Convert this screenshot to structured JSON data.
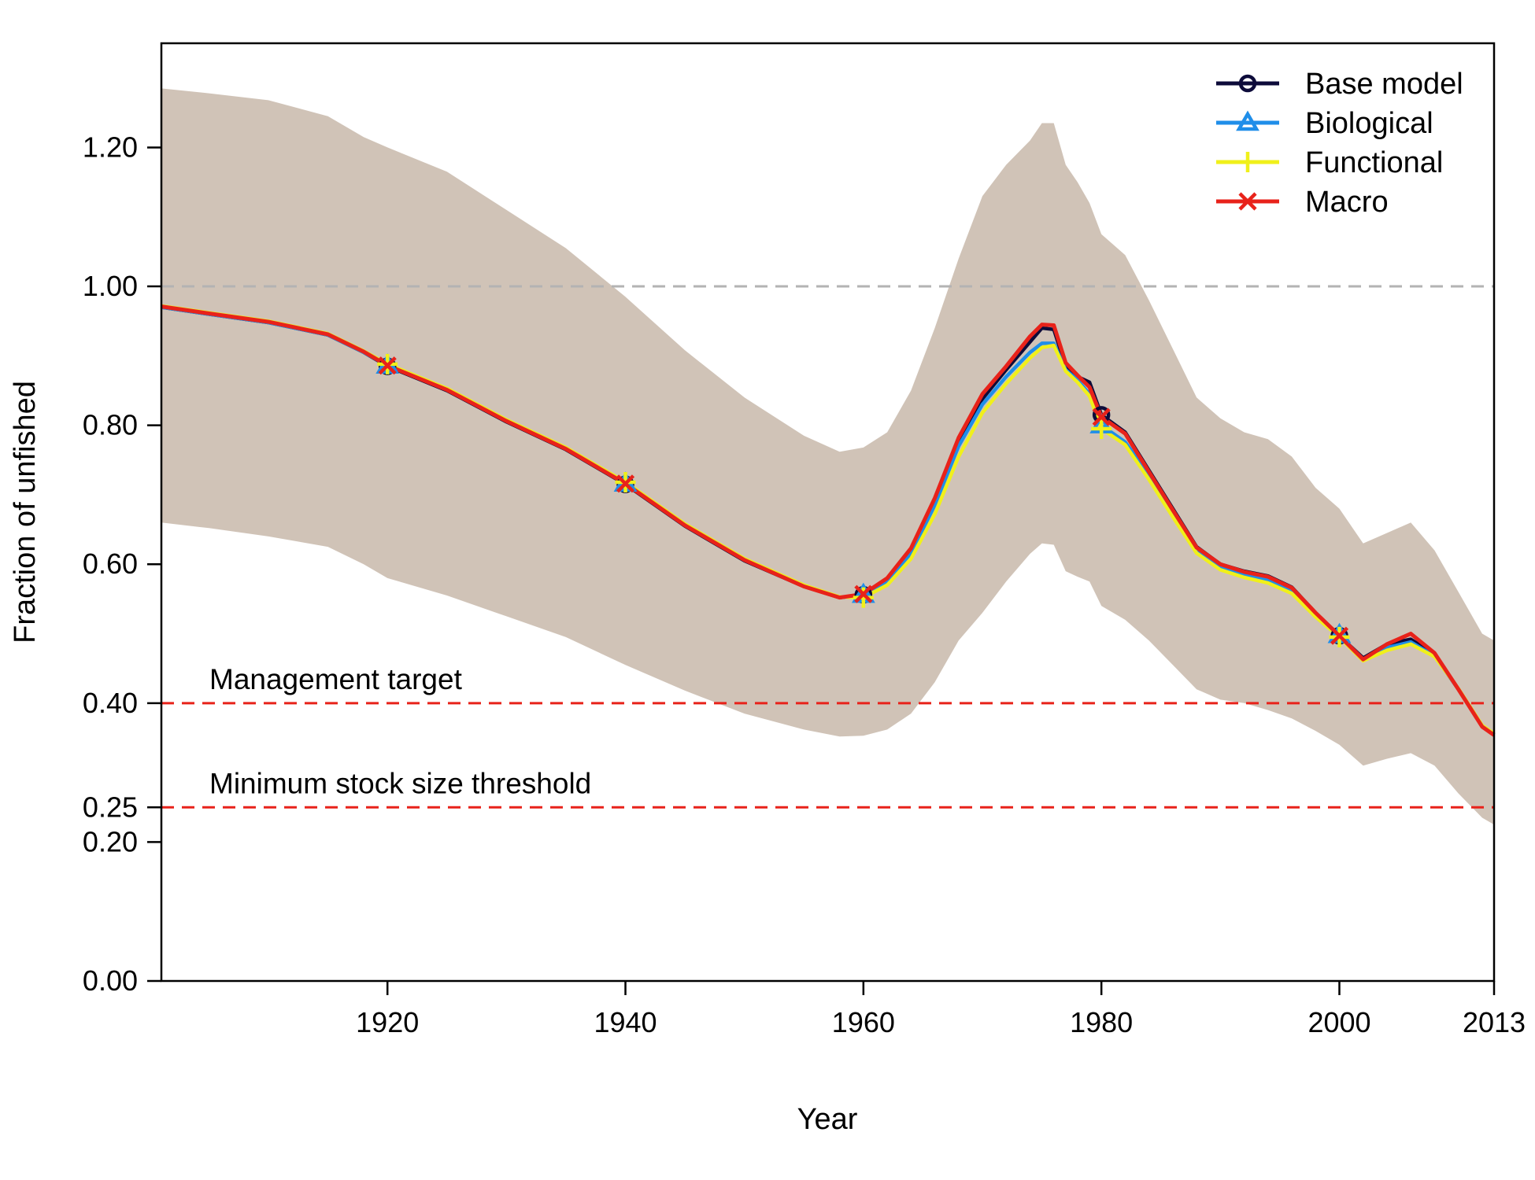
{
  "chart_data": {
    "type": "line",
    "xlabel": "Year",
    "ylabel": "Fraction of unfished",
    "xlim": [
      1901,
      2013
    ],
    "ylim": [
      0,
      1.35
    ],
    "xticks": [
      1920,
      1940,
      1960,
      1980,
      2000,
      2013
    ],
    "xtick_labels": [
      "1920",
      "1940",
      "1960",
      "1980",
      "2000",
      "2013"
    ],
    "yticks": [
      0,
      0.2,
      0.25,
      0.4,
      0.6,
      0.8,
      1.0,
      1.2
    ],
    "ytick_labels": [
      "0.00",
      "0.20",
      "0.25",
      "0.40",
      "0.60",
      "0.80",
      "1.00",
      "1.20"
    ],
    "grid": false,
    "legend_position": "top-right",
    "reference_lines": [
      {
        "y": 1.0,
        "color": "#b3b3b3",
        "style": "dashed",
        "label": ""
      },
      {
        "y": 0.4,
        "color": "#e8221a",
        "style": "dashed",
        "label": "Management target"
      },
      {
        "y": 0.25,
        "color": "#e8221a",
        "style": "dashed",
        "label": "Minimum stock size threshold"
      }
    ],
    "x": [
      1901,
      1905,
      1910,
      1915,
      1918,
      1920,
      1925,
      1930,
      1935,
      1940,
      1945,
      1950,
      1955,
      1958,
      1960,
      1962,
      1964,
      1966,
      1968,
      1970,
      1972,
      1974,
      1975,
      1976,
      1977,
      1978,
      1979,
      1980,
      1982,
      1984,
      1986,
      1988,
      1990,
      1992,
      1994,
      1996,
      1998,
      2000,
      2002,
      2004,
      2006,
      2008,
      2010,
      2012,
      2013
    ],
    "series": [
      {
        "name": "Base model",
        "color": "#0d0b3a",
        "marker": "circle",
        "values": [
          0.97,
          0.96,
          0.948,
          0.93,
          0.905,
          0.885,
          0.85,
          0.805,
          0.765,
          0.715,
          0.655,
          0.605,
          0.568,
          0.552,
          0.556,
          0.578,
          0.62,
          0.69,
          0.775,
          0.838,
          0.88,
          0.92,
          0.94,
          0.938,
          0.885,
          0.87,
          0.862,
          0.815,
          0.79,
          0.735,
          0.68,
          0.625,
          0.6,
          0.59,
          0.583,
          0.567,
          0.53,
          0.497,
          0.465,
          0.485,
          0.492,
          0.47,
          0.42,
          0.367,
          0.355
        ]
      },
      {
        "name": "Biological",
        "color": "#1f8ee9",
        "marker": "triangle",
        "values": [
          0.97,
          0.96,
          0.948,
          0.93,
          0.905,
          0.886,
          0.851,
          0.806,
          0.766,
          0.716,
          0.656,
          0.606,
          0.568,
          0.552,
          0.556,
          0.576,
          0.616,
          0.685,
          0.77,
          0.83,
          0.87,
          0.905,
          0.918,
          0.918,
          0.88,
          0.865,
          0.845,
          0.8,
          0.776,
          0.728,
          0.672,
          0.62,
          0.596,
          0.585,
          0.578,
          0.563,
          0.528,
          0.498,
          0.463,
          0.48,
          0.488,
          0.468,
          0.42,
          0.366,
          0.354
        ]
      },
      {
        "name": "Functional",
        "color": "#f0f01a",
        "marker": "plus",
        "values": [
          0.972,
          0.962,
          0.95,
          0.932,
          0.907,
          0.888,
          0.853,
          0.808,
          0.768,
          0.718,
          0.658,
          0.608,
          0.57,
          0.553,
          0.552,
          0.57,
          0.608,
          0.672,
          0.755,
          0.818,
          0.86,
          0.897,
          0.912,
          0.915,
          0.878,
          0.862,
          0.842,
          0.795,
          0.772,
          0.722,
          0.668,
          0.616,
          0.592,
          0.581,
          0.573,
          0.558,
          0.524,
          0.495,
          0.461,
          0.476,
          0.485,
          0.467,
          0.421,
          0.368,
          0.356
        ]
      },
      {
        "name": "Macro",
        "color": "#e8221a",
        "marker": "x",
        "values": [
          0.971,
          0.961,
          0.949,
          0.931,
          0.906,
          0.886,
          0.851,
          0.806,
          0.766,
          0.716,
          0.656,
          0.606,
          0.568,
          0.552,
          0.557,
          0.58,
          0.623,
          0.695,
          0.782,
          0.845,
          0.885,
          0.928,
          0.945,
          0.944,
          0.89,
          0.872,
          0.855,
          0.812,
          0.788,
          0.733,
          0.678,
          0.624,
          0.6,
          0.589,
          0.582,
          0.566,
          0.53,
          0.497,
          0.463,
          0.485,
          0.5,
          0.472,
          0.42,
          0.366,
          0.354
        ]
      }
    ],
    "confidence_band": {
      "color": "#c8b9aa",
      "upper": [
        1.285,
        1.278,
        1.268,
        1.245,
        1.215,
        1.2,
        1.165,
        1.11,
        1.055,
        0.985,
        0.908,
        0.84,
        0.785,
        0.762,
        0.768,
        0.79,
        0.85,
        0.94,
        1.04,
        1.13,
        1.175,
        1.21,
        1.235,
        1.235,
        1.175,
        1.15,
        1.12,
        1.075,
        1.045,
        0.98,
        0.91,
        0.84,
        0.81,
        0.79,
        0.78,
        0.755,
        0.71,
        0.68,
        0.63,
        0.645,
        0.66,
        0.62,
        0.56,
        0.5,
        0.49
      ],
      "lower": [
        0.66,
        0.652,
        0.64,
        0.625,
        0.6,
        0.58,
        0.555,
        0.525,
        0.495,
        0.455,
        0.418,
        0.385,
        0.362,
        0.352,
        0.353,
        0.362,
        0.385,
        0.43,
        0.49,
        0.53,
        0.575,
        0.615,
        0.63,
        0.628,
        0.59,
        0.582,
        0.575,
        0.54,
        0.52,
        0.49,
        0.455,
        0.42,
        0.405,
        0.4,
        0.39,
        0.378,
        0.36,
        0.34,
        0.31,
        0.32,
        0.328,
        0.31,
        0.27,
        0.235,
        0.225
      ]
    },
    "marker_years": [
      1920,
      1940,
      1960,
      1980,
      2000
    ]
  }
}
